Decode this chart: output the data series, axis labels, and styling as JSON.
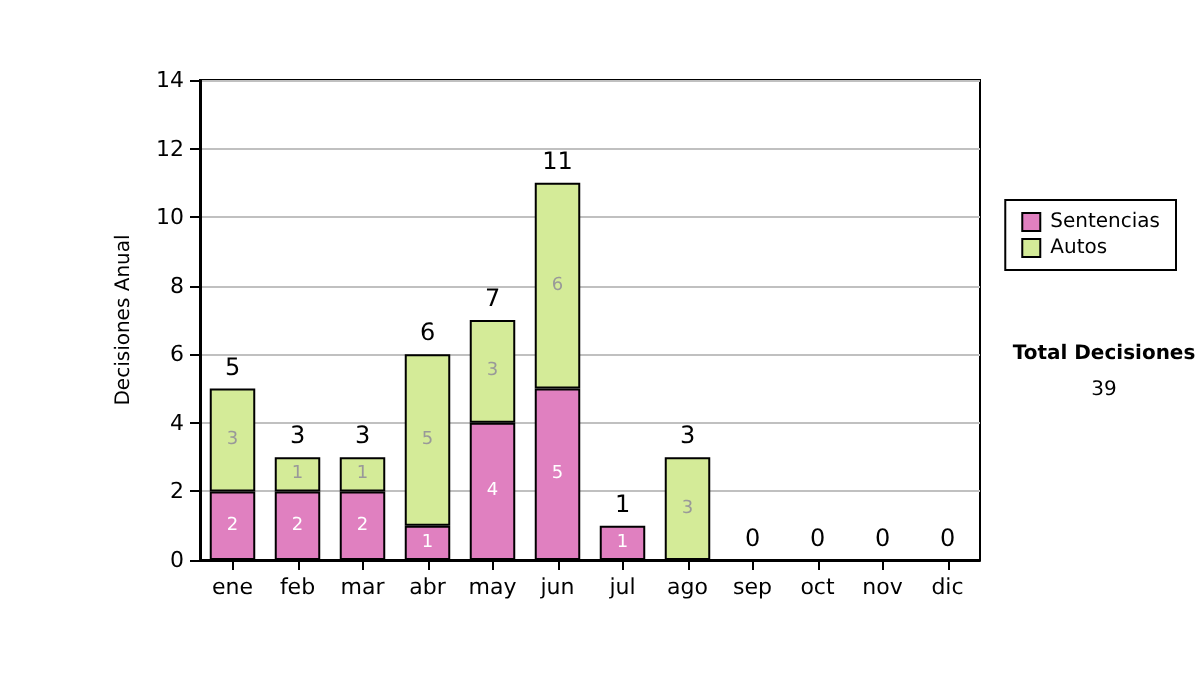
{
  "chart_data": {
    "type": "bar",
    "ylabel": "Decisiones Anual",
    "categories": [
      "ene",
      "feb",
      "mar",
      "abr",
      "may",
      "jun",
      "jul",
      "ago",
      "sep",
      "oct",
      "nov",
      "dic"
    ],
    "stacked": true,
    "series": [
      {
        "name": "Sentencias",
        "color": "#e080c0",
        "values": [
          2,
          2,
          2,
          1,
          4,
          5,
          1,
          0,
          0,
          0,
          0,
          0
        ],
        "value_labels": [
          "2",
          "2",
          "2",
          "1",
          "4",
          "5",
          "1",
          null,
          null,
          null,
          null,
          null
        ]
      },
      {
        "name": "Autos",
        "color": "#d4eb98",
        "values": [
          3,
          1,
          1,
          5,
          3,
          6,
          0,
          3,
          0,
          0,
          0,
          0
        ],
        "value_labels": [
          "3",
          "1",
          "1",
          "5",
          "3",
          "6",
          null,
          "3",
          null,
          null,
          null,
          null
        ]
      }
    ],
    "totals": [
      "5",
      "3",
      "3",
      "6",
      "7",
      "11",
      "1",
      "3",
      "0",
      "0",
      "0",
      "0"
    ],
    "ylim": [
      0,
      14
    ],
    "yticks": [
      0,
      2,
      4,
      6,
      8,
      10,
      12,
      14
    ],
    "grid": "y",
    "legend": "right",
    "annotations": [
      "Total Decisiones",
      "39"
    ]
  }
}
